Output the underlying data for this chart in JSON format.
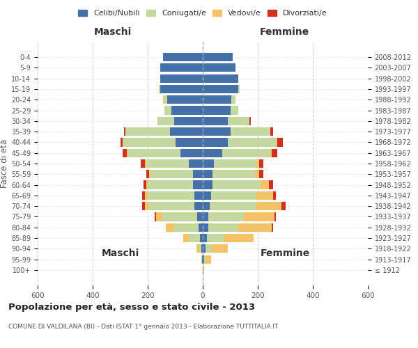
{
  "age_groups": [
    "100+",
    "95-99",
    "90-94",
    "85-89",
    "80-84",
    "75-79",
    "70-74",
    "65-69",
    "60-64",
    "55-59",
    "50-54",
    "45-49",
    "40-44",
    "35-39",
    "30-34",
    "25-29",
    "20-24",
    "15-19",
    "10-14",
    "5-9",
    "0-4"
  ],
  "birth_years": [
    "≤ 1912",
    "1913-1917",
    "1918-1922",
    "1923-1927",
    "1928-1932",
    "1933-1937",
    "1938-1942",
    "1943-1947",
    "1948-1952",
    "1953-1957",
    "1958-1962",
    "1963-1967",
    "1968-1972",
    "1973-1977",
    "1978-1982",
    "1983-1987",
    "1988-1992",
    "1993-1997",
    "1998-2002",
    "2003-2007",
    "2008-2012"
  ],
  "colors": {
    "celibi": "#4472A8",
    "coniugati": "#C5D8A0",
    "vedovi": "#F5C267",
    "divorziati": "#D03020"
  },
  "maschi": {
    "celibi": [
      0,
      2,
      4,
      10,
      15,
      20,
      30,
      30,
      35,
      35,
      50,
      80,
      100,
      120,
      105,
      115,
      130,
      155,
      155,
      155,
      145
    ],
    "coniugati": [
      0,
      2,
      8,
      40,
      90,
      130,
      165,
      170,
      165,
      155,
      155,
      190,
      190,
      160,
      60,
      25,
      10,
      5,
      0,
      0,
      0
    ],
    "vedovi": [
      0,
      2,
      10,
      20,
      30,
      20,
      15,
      10,
      5,
      5,
      5,
      5,
      0,
      0,
      0,
      0,
      5,
      0,
      0,
      0,
      0
    ],
    "divorziati": [
      0,
      0,
      0,
      0,
      0,
      5,
      10,
      10,
      10,
      10,
      15,
      15,
      10,
      5,
      0,
      0,
      0,
      0,
      0,
      0,
      0
    ]
  },
  "femmine": {
    "celibi": [
      0,
      5,
      10,
      15,
      20,
      20,
      25,
      30,
      35,
      35,
      40,
      70,
      90,
      100,
      90,
      100,
      105,
      130,
      130,
      120,
      110
    ],
    "coniugati": [
      0,
      5,
      20,
      60,
      110,
      130,
      170,
      165,
      175,
      155,
      155,
      175,
      175,
      145,
      80,
      30,
      15,
      5,
      0,
      0,
      0
    ],
    "vedovi": [
      5,
      20,
      60,
      110,
      120,
      110,
      90,
      60,
      30,
      15,
      10,
      5,
      5,
      0,
      0,
      0,
      0,
      0,
      0,
      0,
      0
    ],
    "divorziati": [
      0,
      0,
      0,
      0,
      5,
      5,
      15,
      10,
      15,
      15,
      15,
      20,
      20,
      10,
      5,
      0,
      0,
      0,
      0,
      0,
      0
    ]
  },
  "xlim": 600,
  "title": "Popolazione per età, sesso e stato civile - 2013",
  "subtitle": "COMUNE DI VALDILANA (BI) - Dati ISTAT 1° gennaio 2013 - Elaborazione TUTTITALIA.IT",
  "ylabel_left": "Fasce di età",
  "xlabel_maschi": "Maschi",
  "xlabel_femmine": "Femmine",
  "legend_labels": [
    "Celibi/Nubili",
    "Coniugati/e",
    "Vedovi/e",
    "Divorziati/e"
  ],
  "bg_color": "#FFFFFF",
  "grid_color": "#CCCCCC"
}
